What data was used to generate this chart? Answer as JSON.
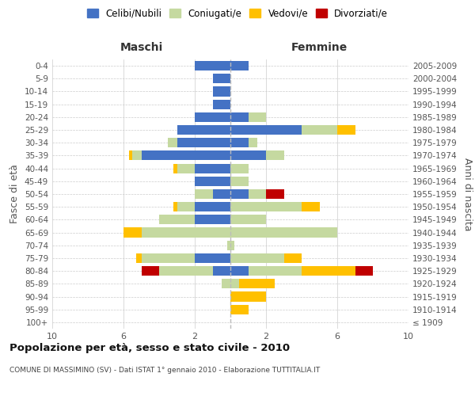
{
  "age_groups": [
    "100+",
    "95-99",
    "90-94",
    "85-89",
    "80-84",
    "75-79",
    "70-74",
    "65-69",
    "60-64",
    "55-59",
    "50-54",
    "45-49",
    "40-44",
    "35-39",
    "30-34",
    "25-29",
    "20-24",
    "15-19",
    "10-14",
    "5-9",
    "0-4"
  ],
  "birth_years": [
    "≤ 1909",
    "1910-1914",
    "1915-1919",
    "1920-1924",
    "1925-1929",
    "1930-1934",
    "1935-1939",
    "1940-1944",
    "1945-1949",
    "1950-1954",
    "1955-1959",
    "1960-1964",
    "1965-1969",
    "1970-1974",
    "1975-1979",
    "1980-1984",
    "1985-1989",
    "1990-1994",
    "1995-1999",
    "2000-2004",
    "2005-2009"
  ],
  "maschi_celibi": [
    0,
    0,
    0,
    0,
    1,
    2,
    0,
    0,
    2,
    2,
    1,
    2,
    2,
    5,
    3,
    3,
    2,
    1,
    1,
    1,
    2
  ],
  "maschi_coniugati": [
    0,
    0,
    0,
    0.5,
    3,
    3,
    0.2,
    5,
    2,
    1,
    1,
    0,
    1,
    0.5,
    0.5,
    0,
    0,
    0,
    0,
    0,
    0
  ],
  "maschi_vedovi": [
    0,
    0,
    0,
    0,
    0,
    0.3,
    0,
    1,
    0,
    0.2,
    0,
    0,
    0.2,
    0.2,
    0,
    0,
    0,
    0,
    0,
    0,
    0
  ],
  "maschi_divorziati": [
    0,
    0,
    0,
    0,
    1,
    0,
    0,
    0,
    0,
    0,
    0,
    0,
    0,
    0,
    0,
    0,
    0,
    0,
    0,
    0,
    0
  ],
  "femmine_nubili": [
    0,
    0,
    0,
    0,
    1,
    0,
    0,
    0,
    0,
    0,
    1,
    0,
    0,
    2,
    1,
    4,
    1,
    0,
    0,
    0,
    1
  ],
  "femmine_coniugate": [
    0,
    0,
    0,
    0.5,
    3,
    3,
    0.2,
    6,
    2,
    4,
    1,
    1,
    1,
    1,
    0.5,
    2,
    1,
    0,
    0,
    0,
    0
  ],
  "femmine_vedove": [
    0,
    1,
    2,
    2,
    3,
    1,
    0,
    0,
    0,
    1,
    0,
    0,
    0,
    0,
    0,
    1,
    0,
    0,
    0,
    0,
    0
  ],
  "femmine_divorziate": [
    0,
    0,
    0,
    0,
    1,
    0,
    0,
    0,
    0,
    0,
    1,
    0,
    0,
    0,
    0,
    0,
    0,
    0,
    0,
    0,
    0
  ],
  "col_celibi": "#4472c4",
  "col_coniugati": "#c5d9a0",
  "col_vedovi": "#ffc000",
  "col_divorziati": "#c00000",
  "xlim": 10,
  "title": "Popolazione per età, sesso e stato civile - 2010",
  "subtitle": "COMUNE DI MASSIMINO (SV) - Dati ISTAT 1° gennaio 2010 - Elaborazione TUTTITALIA.IT",
  "ylabel_left": "Fasce di età",
  "ylabel_right": "Anni di nascita",
  "label_maschi": "Maschi",
  "label_femmine": "Femmine",
  "legend_labels": [
    "Celibi/Nubili",
    "Coniugati/e",
    "Vedovi/e",
    "Divorziati/e"
  ],
  "bg_color": "#ffffff",
  "grid_color": "#cccccc"
}
